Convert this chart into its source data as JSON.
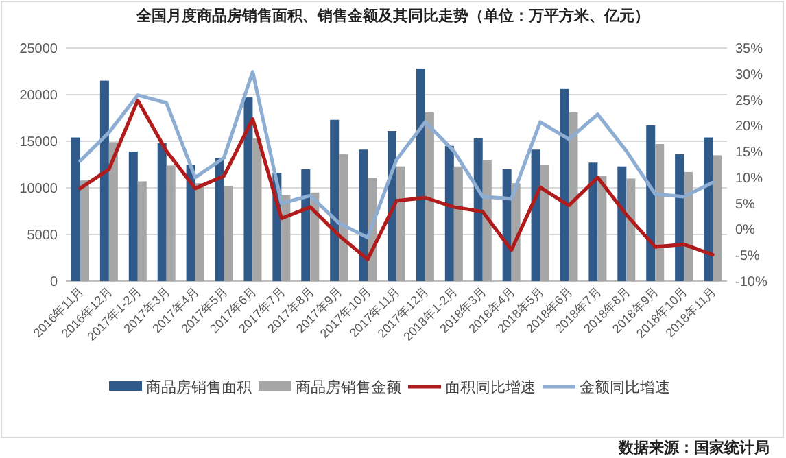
{
  "chart_data": {
    "type": "bar",
    "title": "全国月度商品房销售面积、销售金额及其同比走势（单位：万平方米、亿元）",
    "categories": [
      "2016年11月",
      "2016年12月",
      "2017年1-2月",
      "2017年3月",
      "2017年4月",
      "2017年5月",
      "2017年6月",
      "2017年7月",
      "2017年8月",
      "2017年9月",
      "2017年10月",
      "2017年11月",
      "2017年12月",
      "2018年1-2月",
      "2018年3月",
      "2018年4月",
      "2018年5月",
      "2018年6月",
      "2018年7月",
      "2018年8月",
      "2018年9月",
      "2018年10月",
      "2018年11月"
    ],
    "series": [
      {
        "name": "商品房销售面积",
        "color": "#2f5a8a",
        "values": [
          15400,
          21500,
          13900,
          14800,
          12500,
          13200,
          19700,
          11600,
          12000,
          17300,
          14100,
          16100,
          22800,
          14500,
          15300,
          12000,
          14100,
          20600,
          12700,
          12300,
          16700,
          13600,
          15400
        ]
      },
      {
        "name": "商品房销售金额",
        "color": "#a6a6a6",
        "values": [
          10800,
          14900,
          10700,
          12400,
          10500,
          10200,
          15300,
          9200,
          9500,
          13600,
          11100,
          12300,
          18100,
          12300,
          13000,
          10500,
          12500,
          18100,
          11300,
          11000,
          14700,
          11700,
          13500
        ]
      },
      {
        "name": "面积同比增速",
        "type": "line",
        "axis": "y2",
        "color": "#b01c1c",
        "values": [
          7.9,
          11.6,
          24.9,
          15.1,
          7.9,
          10.3,
          21.3,
          2.1,
          4.3,
          -1.2,
          -5.8,
          5.5,
          6.1,
          4.3,
          3.4,
          -4.0,
          8.1,
          4.6,
          10.0,
          2.8,
          -3.4,
          -2.9,
          -4.9
        ]
      },
      {
        "name": "金额同比增速",
        "type": "line",
        "axis": "y2",
        "color": "#8eadd3",
        "values": [
          13.2,
          18.7,
          25.9,
          24.4,
          10.0,
          13.8,
          30.4,
          5.0,
          6.5,
          1.2,
          -1.6,
          13.4,
          20.7,
          15.1,
          6.3,
          5.9,
          20.7,
          17.4,
          22.2,
          15.1,
          6.8,
          6.3,
          9.0
        ]
      }
    ],
    "ylim": [
      0,
      25000
    ],
    "yticks": [
      0,
      5000,
      10000,
      15000,
      20000,
      25000
    ],
    "y2lim": [
      -10,
      35
    ],
    "y2ticks": [
      {
        "value": -10,
        "label": "-10%"
      },
      {
        "value": -5,
        "label": "-5%"
      },
      {
        "value": 0,
        "label": "0%"
      },
      {
        "value": 5,
        "label": "5%"
      },
      {
        "value": 10,
        "label": "10%"
      },
      {
        "value": 15,
        "label": "15%"
      },
      {
        "value": 20,
        "label": "20%"
      },
      {
        "value": 25,
        "label": "25%"
      },
      {
        "value": 30,
        "label": "30%"
      },
      {
        "value": 35,
        "label": "35%"
      }
    ],
    "grid": "y",
    "legend": "bottom",
    "line_style": "solid",
    "annotations": [
      "数据来源：国家统计局"
    ]
  }
}
